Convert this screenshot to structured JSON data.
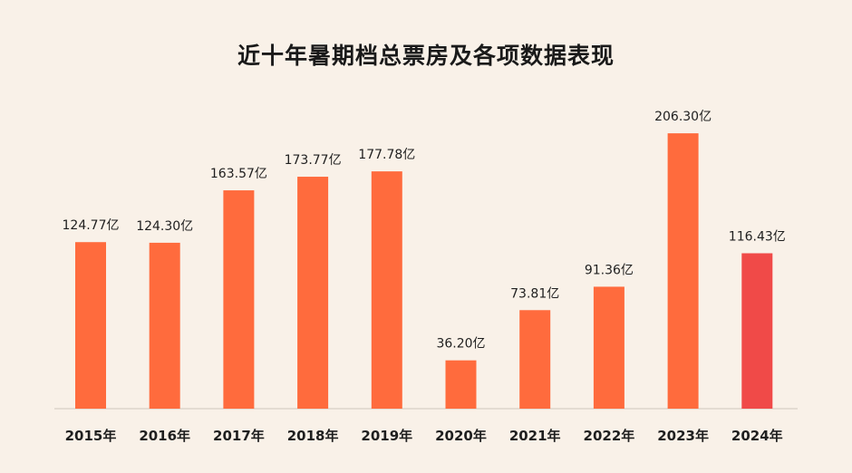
{
  "chart_data": {
    "type": "bar",
    "title": "近十年暑期档总票房及各项数据表现",
    "categories": [
      "2015年",
      "2016年",
      "2017年",
      "2018年",
      "2019年",
      "2020年",
      "2021年",
      "2022年",
      "2023年",
      "2024年"
    ],
    "values": [
      124.77,
      124.3,
      163.57,
      173.77,
      177.78,
      36.2,
      73.81,
      91.36,
      206.3,
      116.43
    ],
    "value_labels": [
      "124.77亿",
      "124.30亿",
      "163.57亿",
      "173.77亿",
      "177.78亿",
      "36.20亿",
      "73.81亿",
      "91.36亿",
      "206.30亿",
      "116.43亿"
    ],
    "xlabel": "",
    "ylabel": "",
    "ylim": [
      0,
      220
    ],
    "grid": false,
    "colors": {
      "bar": "#ff6b3d",
      "bar_highlight": "#f04a48",
      "highlight_category": "2024年",
      "baseline": "#cfc6bd",
      "background": "#f9f1e8"
    }
  }
}
